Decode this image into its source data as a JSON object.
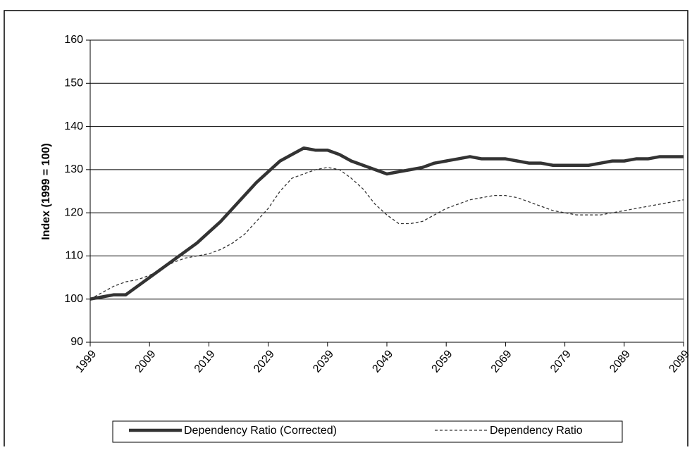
{
  "chart_data": {
    "type": "line",
    "ylabel": "Index (1999 = 100)",
    "x": [
      1999,
      2001,
      2003,
      2005,
      2007,
      2009,
      2011,
      2013,
      2015,
      2017,
      2019,
      2021,
      2023,
      2025,
      2027,
      2029,
      2031,
      2033,
      2035,
      2037,
      2039,
      2041,
      2043,
      2045,
      2047,
      2049,
      2051,
      2053,
      2055,
      2057,
      2059,
      2061,
      2063,
      2065,
      2067,
      2069,
      2071,
      2073,
      2075,
      2077,
      2079,
      2081,
      2083,
      2085,
      2087,
      2089,
      2091,
      2093,
      2095,
      2097,
      2099
    ],
    "series": [
      {
        "name": "Dependency Ratio (Corrected)",
        "color": "#333333",
        "style": "solid",
        "values": [
          100,
          100.5,
          101,
          101,
          103,
          105,
          107,
          109,
          111,
          113,
          115.5,
          118,
          121,
          124,
          127,
          129.5,
          132,
          133.5,
          135,
          134.5,
          134.5,
          133.5,
          132,
          131,
          130,
          129,
          129.5,
          130,
          130.5,
          131.5,
          132,
          132.5,
          133,
          132.5,
          132.5,
          132.5,
          132,
          131.5,
          131.5,
          131,
          131,
          131,
          131,
          131.5,
          132,
          132,
          132.5,
          132.5,
          133,
          133,
          133
        ]
      },
      {
        "name": "Dependency Ratio",
        "color": "#333333",
        "style": "dashed",
        "values": [
          100,
          101.5,
          103,
          104,
          104.5,
          105.5,
          107,
          108.5,
          109.5,
          110,
          110.5,
          111.5,
          113,
          115,
          118,
          121,
          125,
          128,
          129,
          130,
          130.5,
          130,
          128,
          125.5,
          122,
          119.5,
          117.5,
          117.5,
          118,
          119.5,
          121,
          122,
          123,
          123.5,
          124,
          124,
          123.5,
          122.5,
          121.5,
          120.5,
          120,
          119.5,
          119.5,
          119.5,
          120,
          120.5,
          121,
          121.5,
          122,
          122.5,
          123
        ]
      }
    ],
    "xlim": [
      1999,
      2099
    ],
    "xticks": [
      1999,
      2009,
      2019,
      2029,
      2039,
      2049,
      2059,
      2069,
      2079,
      2089,
      2099
    ],
    "ylim": [
      90,
      160
    ],
    "yticks": [
      90,
      100,
      110,
      120,
      130,
      140,
      150,
      160
    ],
    "grid": true
  }
}
